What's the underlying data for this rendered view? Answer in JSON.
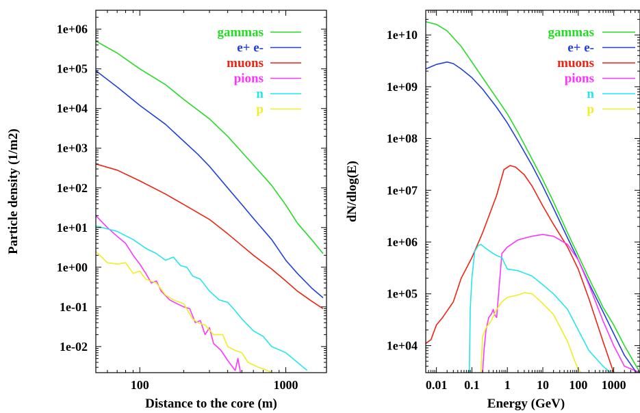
{
  "chart_data": [
    {
      "type": "line",
      "xscale": "log",
      "yscale": "log",
      "xlabel": "Distance to the core (m)",
      "ylabel": "Particle density (1/m2)",
      "xlim": [
        50,
        1900
      ],
      "ylim": [
        0.0022,
        3000000
      ],
      "x_ticks": [
        {
          "v": 100,
          "label": "100"
        },
        {
          "v": 1000,
          "label": "1000"
        }
      ],
      "y_ticks": [
        {
          "v": 1000000,
          "label": "1e+06"
        },
        {
          "v": 100000,
          "label": "1e+05"
        },
        {
          "v": 10000,
          "label": "1e+04"
        },
        {
          "v": 1000,
          "label": "1e+03"
        },
        {
          "v": 100,
          "label": "1e+02"
        },
        {
          "v": 10,
          "label": "1e+01"
        },
        {
          "v": 1,
          "label": "1e+00"
        },
        {
          "v": 0.1,
          "label": "1e-01"
        },
        {
          "v": 0.01,
          "label": "1e-02"
        }
      ],
      "legend_position": "top-right",
      "series": [
        {
          "name": "gammas",
          "color": "#22dd22",
          "points": [
            [
              50,
              500000
            ],
            [
              70,
              250000
            ],
            [
              100,
              100000
            ],
            [
              150,
              40000
            ],
            [
              200,
              17000
            ],
            [
              300,
              5500
            ],
            [
              400,
              2000
            ],
            [
              500,
              800
            ],
            [
              600,
              380
            ],
            [
              800,
              115
            ],
            [
              1000,
              37
            ],
            [
              1200,
              13
            ],
            [
              1500,
              5
            ],
            [
              1800,
              2.2
            ]
          ]
        },
        {
          "name": "e+ e-",
          "color": "#1f3fdd",
          "points": [
            [
              50,
              90000
            ],
            [
              70,
              35000
            ],
            [
              100,
              12000
            ],
            [
              150,
              4000
            ],
            [
              200,
              1500
            ],
            [
              250,
              700
            ],
            [
              300,
              350
            ],
            [
              400,
              100
            ],
            [
              500,
              38
            ],
            [
              600,
              17
            ],
            [
              800,
              5
            ],
            [
              1000,
              1.5
            ],
            [
              1200,
              0.7
            ],
            [
              1500,
              0.3
            ],
            [
              1800,
              0.17
            ]
          ]
        },
        {
          "name": "muons",
          "color": "#ee2211",
          "points": [
            [
              50,
              400
            ],
            [
              70,
              280
            ],
            [
              100,
              150
            ],
            [
              150,
              70
            ],
            [
              200,
              38
            ],
            [
              300,
              16
            ],
            [
              400,
              7
            ],
            [
              500,
              3.5
            ],
            [
              600,
              2
            ],
            [
              800,
              0.9
            ],
            [
              1000,
              0.45
            ],
            [
              1200,
              0.25
            ],
            [
              1500,
              0.14
            ],
            [
              1800,
              0.09
            ]
          ]
        },
        {
          "name": "pions",
          "color": "#ff33ff",
          "points": [
            [
              50,
              20
            ],
            [
              60,
              10
            ],
            [
              70,
              6
            ],
            [
              80,
              4
            ],
            [
              90,
              2
            ],
            [
              100,
              1.2
            ],
            [
              110,
              0.7
            ],
            [
              120,
              0.4
            ],
            [
              130,
              0.45
            ],
            [
              140,
              0.25
            ],
            [
              160,
              0.15
            ],
            [
              180,
              0.12
            ],
            [
              200,
              0.1
            ],
            [
              220,
              0.09
            ],
            [
              240,
              0.04
            ],
            [
              260,
              0.045
            ],
            [
              280,
              0.02
            ],
            [
              300,
              0.03
            ],
            [
              320,
              0.012
            ],
            [
              360,
              0.008
            ],
            [
              400,
              0.0045
            ],
            [
              450,
              0.0025
            ],
            [
              470,
              0.005
            ],
            [
              490,
              0.0022
            ]
          ]
        },
        {
          "name": "n",
          "color": "#22e6ee",
          "points": [
            [
              50,
              11
            ],
            [
              70,
              8
            ],
            [
              90,
              5
            ],
            [
              110,
              3
            ],
            [
              130,
              2.2
            ],
            [
              150,
              1.5
            ],
            [
              170,
              1.8
            ],
            [
              190,
              1.1
            ],
            [
              210,
              1.0
            ],
            [
              230,
              0.6
            ],
            [
              260,
              0.5
            ],
            [
              300,
              0.25
            ],
            [
              350,
              0.15
            ],
            [
              400,
              0.13
            ],
            [
              450,
              0.08
            ],
            [
              500,
              0.05
            ],
            [
              600,
              0.025
            ],
            [
              700,
              0.018
            ],
            [
              800,
              0.01
            ],
            [
              1000,
              0.007
            ],
            [
              1200,
              0.004
            ],
            [
              1400,
              0.0025
            ]
          ]
        },
        {
          "name": "p",
          "color": "#eeee22",
          "points": [
            [
              50,
              2.5
            ],
            [
              60,
              1.3
            ],
            [
              70,
              1.2
            ],
            [
              80,
              1.3
            ],
            [
              90,
              0.7
            ],
            [
              100,
              0.8
            ],
            [
              110,
              0.5
            ],
            [
              130,
              0.4
            ],
            [
              150,
              0.2
            ],
            [
              170,
              0.15
            ],
            [
              200,
              0.12
            ],
            [
              230,
              0.05
            ],
            [
              250,
              0.04
            ],
            [
              280,
              0.035
            ],
            [
              320,
              0.02
            ],
            [
              370,
              0.02
            ],
            [
              400,
              0.01
            ],
            [
              450,
              0.008
            ],
            [
              500,
              0.007
            ],
            [
              550,
              0.004
            ],
            [
              650,
              0.003
            ],
            [
              750,
              0.0025
            ],
            [
              800,
              0.0022
            ]
          ]
        }
      ]
    },
    {
      "type": "line",
      "xscale": "log",
      "yscale": "log",
      "xlabel": "Energy (GeV)",
      "ylabel": "dN/dlog(E)",
      "xlim": [
        0.005,
        5500
      ],
      "ylim": [
        3000,
        30000000000
      ],
      "x_ticks": [
        {
          "v": 0.01,
          "label": "0.01"
        },
        {
          "v": 0.1,
          "label": "0.1"
        },
        {
          "v": 1,
          "label": "1"
        },
        {
          "v": 10,
          "label": "10"
        },
        {
          "v": 100,
          "label": "100"
        },
        {
          "v": 1000,
          "label": "1000"
        }
      ],
      "y_ticks": [
        {
          "v": 10000000000,
          "label": "1e+10"
        },
        {
          "v": 1000000000,
          "label": "1e+09"
        },
        {
          "v": 100000000,
          "label": "1e+08"
        },
        {
          "v": 10000000,
          "label": "1e+07"
        },
        {
          "v": 1000000,
          "label": "1e+06"
        },
        {
          "v": 100000,
          "label": "1e+05"
        },
        {
          "v": 10000,
          "label": "1e+04"
        }
      ],
      "legend_position": "top-right",
      "series": [
        {
          "name": "gammas",
          "color": "#22dd22",
          "points": [
            [
              0.005,
              18000000000
            ],
            [
              0.01,
              16000000000
            ],
            [
              0.02,
              12000000000
            ],
            [
              0.05,
              6000000000
            ],
            [
              0.1,
              3000000000
            ],
            [
              0.2,
              1500000000
            ],
            [
              0.5,
              600000000
            ],
            [
              1,
              300000000
            ],
            [
              2,
              130000000
            ],
            [
              5,
              40000000
            ],
            [
              10,
              16000000
            ],
            [
              20,
              6000000
            ],
            [
              50,
              1500000
            ],
            [
              100,
              550000
            ],
            [
              200,
              200000
            ],
            [
              500,
              55000
            ],
            [
              1000,
              25000
            ],
            [
              2000,
              10000
            ],
            [
              5500,
              3000
            ]
          ]
        },
        {
          "name": "e+ e-",
          "color": "#1f3fdd",
          "points": [
            [
              0.005,
              2200000000
            ],
            [
              0.01,
              2700000000
            ],
            [
              0.02,
              3000000000
            ],
            [
              0.03,
              2800000000
            ],
            [
              0.05,
              2200000000
            ],
            [
              0.1,
              1500000000
            ],
            [
              0.2,
              900000000
            ],
            [
              0.5,
              400000000
            ],
            [
              1,
              200000000
            ],
            [
              2,
              90000000
            ],
            [
              5,
              30000000
            ],
            [
              10,
              12000000
            ],
            [
              20,
              4500000
            ],
            [
              50,
              1200000
            ],
            [
              100,
              450000
            ],
            [
              200,
              160000
            ],
            [
              500,
              45000
            ],
            [
              1000,
              17000
            ],
            [
              2000,
              6500
            ],
            [
              5500,
              2400
            ]
          ]
        },
        {
          "name": "muons",
          "color": "#ee2211",
          "points": [
            [
              0.005,
              11000
            ],
            [
              0.007,
              13000
            ],
            [
              0.01,
              25000
            ],
            [
              0.015,
              35000
            ],
            [
              0.03,
              70000
            ],
            [
              0.05,
              200000
            ],
            [
              0.1,
              500000
            ],
            [
              0.2,
              1500000
            ],
            [
              0.5,
              8000000
            ],
            [
              0.8,
              25000000
            ],
            [
              1.2,
              30000000
            ],
            [
              1.7,
              28000000
            ],
            [
              3,
              20000000
            ],
            [
              5,
              12000000
            ],
            [
              10,
              5000000
            ],
            [
              20,
              2200000
            ],
            [
              50,
              800000
            ],
            [
              100,
              300000
            ],
            [
              200,
              80000
            ],
            [
              500,
              12000
            ],
            [
              1000,
              3000
            ]
          ]
        },
        {
          "name": "pions",
          "color": "#ff33ff",
          "points": [
            [
              0.2,
              3000
            ],
            [
              0.22,
              8000
            ],
            [
              0.25,
              20000
            ],
            [
              0.3,
              35000
            ],
            [
              0.35,
              40000
            ],
            [
              0.4,
              50000
            ],
            [
              0.45,
              38000
            ],
            [
              0.5,
              35000
            ],
            [
              0.7,
              600000
            ],
            [
              1,
              800000
            ],
            [
              2,
              1100000
            ],
            [
              5,
              1300000
            ],
            [
              10,
              1400000
            ],
            [
              20,
              1300000
            ],
            [
              50,
              900000
            ],
            [
              100,
              450000
            ],
            [
              200,
              150000
            ],
            [
              500,
              30000
            ],
            [
              1000,
              10000
            ],
            [
              2000,
              4000
            ],
            [
              5500,
              3000
            ]
          ]
        },
        {
          "name": "n",
          "color": "#22e6ee",
          "points": [
            [
              0.085,
              3000
            ],
            [
              0.09,
              50000
            ],
            [
              0.1,
              200000
            ],
            [
              0.12,
              650000
            ],
            [
              0.15,
              850000
            ],
            [
              0.18,
              900000
            ],
            [
              0.25,
              750000
            ],
            [
              0.4,
              600000
            ],
            [
              0.5,
              550000
            ],
            [
              0.7,
              500000
            ],
            [
              1,
              300000
            ],
            [
              2,
              280000
            ],
            [
              5,
              220000
            ],
            [
              10,
              150000
            ],
            [
              20,
              100000
            ],
            [
              50,
              50000
            ],
            [
              100,
              20000
            ],
            [
              200,
              8000
            ],
            [
              500,
              4000
            ],
            [
              800,
              3000
            ]
          ]
        },
        {
          "name": "p",
          "color": "#eeee22",
          "points": [
            [
              0.18,
              3000
            ],
            [
              0.2,
              15000
            ],
            [
              0.25,
              22000
            ],
            [
              0.35,
              30000
            ],
            [
              0.5,
              50000
            ],
            [
              0.7,
              70000
            ],
            [
              1,
              85000
            ],
            [
              2,
              95000
            ],
            [
              3,
              105000
            ],
            [
              5,
              100000
            ],
            [
              10,
              65000
            ],
            [
              20,
              40000
            ],
            [
              50,
              12000
            ],
            [
              80,
              5000
            ],
            [
              100,
              3500
            ],
            [
              120,
              3000
            ]
          ]
        }
      ]
    }
  ]
}
